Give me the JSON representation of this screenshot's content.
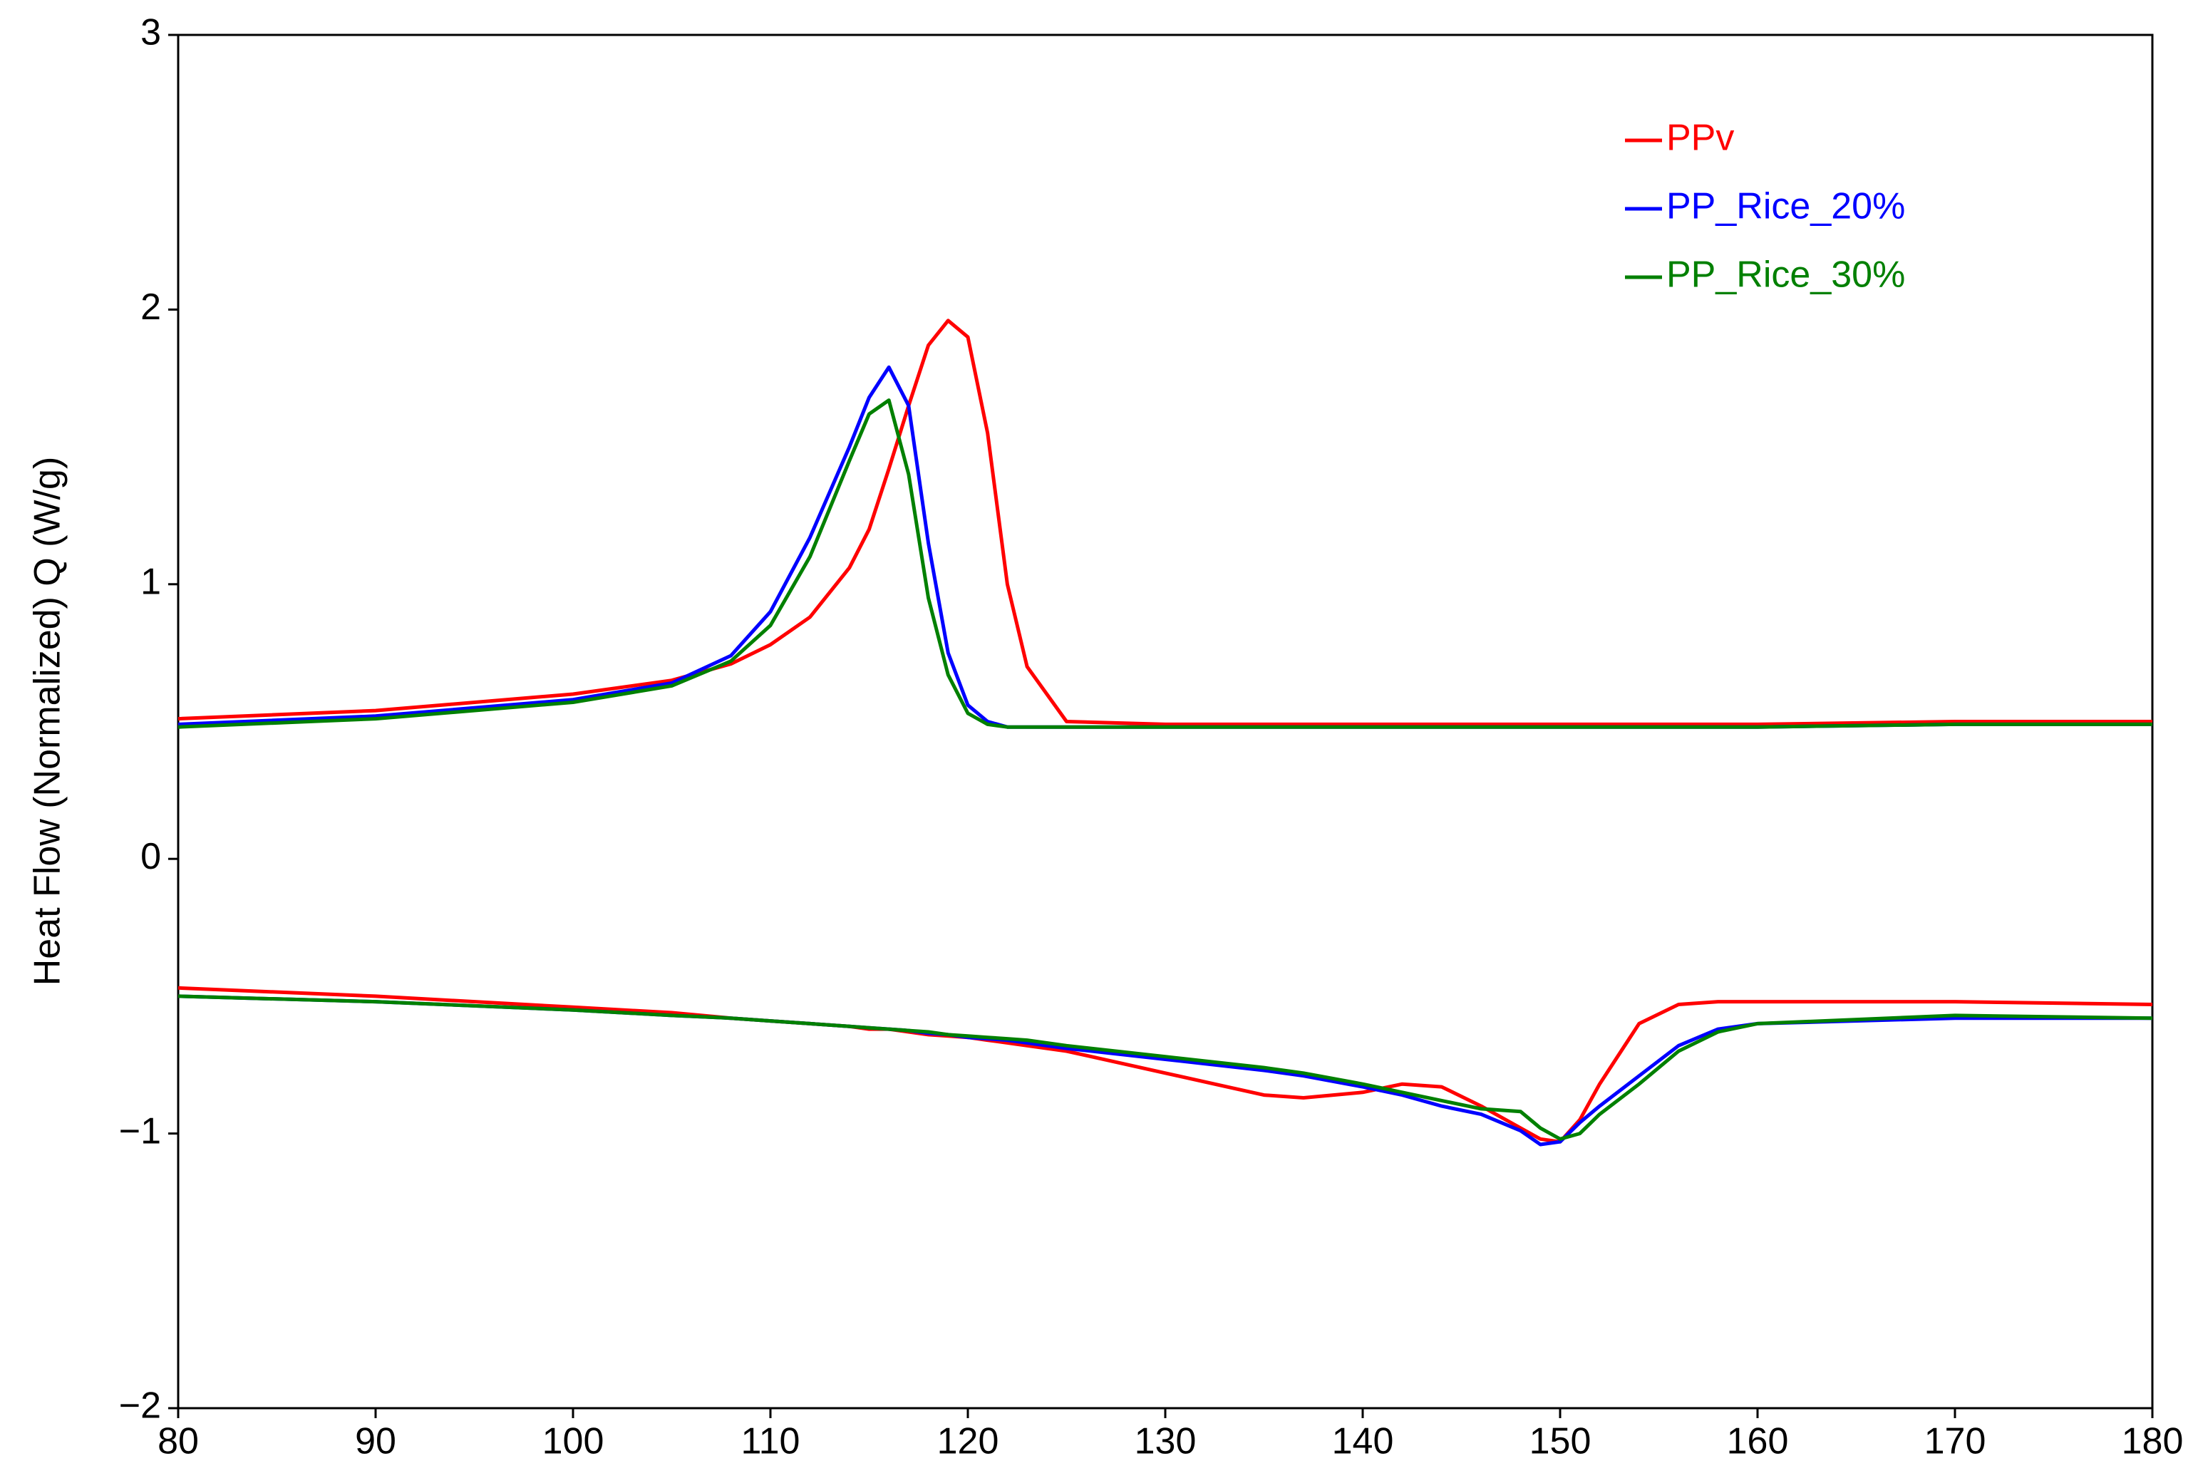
{
  "chart_data": {
    "type": "line",
    "y_label": "Heat Flow (Normalized) Q (W/g)",
    "x": [
      80,
      90,
      100,
      105,
      108,
      110,
      112,
      114,
      115,
      116,
      117,
      118,
      119,
      120,
      121,
      122,
      123,
      125,
      130,
      135,
      137,
      140,
      142,
      144,
      146,
      148,
      149,
      150,
      151,
      152,
      154,
      156,
      158,
      160,
      170,
      180
    ],
    "series": [
      {
        "name": "PPv",
        "color": "#ff0000",
        "values": [
          0.51,
          0.54,
          0.6,
          0.65,
          0.71,
          0.78,
          0.88,
          1.06,
          1.2,
          1.42,
          1.65,
          1.87,
          1.96,
          1.9,
          1.55,
          1.0,
          0.7,
          0.5,
          0.49,
          0.49,
          0.49,
          0.49,
          0.49,
          0.49,
          0.49,
          0.49,
          0.49,
          0.49,
          0.49,
          0.49,
          0.49,
          0.49,
          0.49,
          0.49,
          0.5,
          0.5
        ],
        "values_lower": [
          -0.47,
          -0.5,
          -0.54,
          -0.56,
          -0.58,
          -0.59,
          -0.6,
          -0.61,
          -0.62,
          -0.62,
          -0.63,
          -0.64,
          -0.645,
          -0.65,
          -0.66,
          -0.67,
          -0.68,
          -0.7,
          -0.78,
          -0.86,
          -0.87,
          -0.85,
          -0.82,
          -0.83,
          -0.9,
          -0.98,
          -1.02,
          -1.03,
          -0.95,
          -0.82,
          -0.6,
          -0.53,
          -0.52,
          -0.52,
          -0.52,
          -0.53
        ]
      },
      {
        "name": "PP_Rice_20%",
        "color": "#0000ff",
        "values": [
          0.49,
          0.52,
          0.58,
          0.64,
          0.74,
          0.9,
          1.17,
          1.5,
          1.68,
          1.79,
          1.65,
          1.15,
          0.75,
          0.56,
          0.5,
          0.48,
          0.48,
          0.48,
          0.48,
          0.48,
          0.48,
          0.48,
          0.48,
          0.48,
          0.48,
          0.48,
          0.48,
          0.48,
          0.48,
          0.48,
          0.48,
          0.48,
          0.48,
          0.48,
          0.49,
          0.49
        ],
        "values_lower": [
          -0.5,
          -0.52,
          -0.55,
          -0.57,
          -0.58,
          -0.59,
          -0.6,
          -0.61,
          -0.615,
          -0.62,
          -0.625,
          -0.635,
          -0.64,
          -0.65,
          -0.655,
          -0.66,
          -0.67,
          -0.69,
          -0.73,
          -0.77,
          -0.79,
          -0.83,
          -0.86,
          -0.9,
          -0.93,
          -0.99,
          -1.04,
          -1.03,
          -0.96,
          -0.9,
          -0.79,
          -0.68,
          -0.62,
          -0.6,
          -0.58,
          -0.58
        ]
      },
      {
        "name": "PP_Rice_30%",
        "color": "#008000",
        "values": [
          0.48,
          0.51,
          0.57,
          0.63,
          0.72,
          0.85,
          1.1,
          1.45,
          1.62,
          1.67,
          1.4,
          0.95,
          0.67,
          0.53,
          0.49,
          0.48,
          0.48,
          0.48,
          0.48,
          0.48,
          0.48,
          0.48,
          0.48,
          0.48,
          0.48,
          0.48,
          0.48,
          0.48,
          0.48,
          0.48,
          0.48,
          0.48,
          0.48,
          0.48,
          0.49,
          0.49
        ],
        "values_lower": [
          -0.5,
          -0.52,
          -0.55,
          -0.57,
          -0.58,
          -0.59,
          -0.6,
          -0.61,
          -0.615,
          -0.62,
          -0.625,
          -0.63,
          -0.64,
          -0.645,
          -0.65,
          -0.655,
          -0.66,
          -0.68,
          -0.72,
          -0.76,
          -0.78,
          -0.82,
          -0.85,
          -0.88,
          -0.91,
          -0.92,
          -0.98,
          -1.02,
          -1.0,
          -0.93,
          -0.82,
          -0.7,
          -0.63,
          -0.6,
          -0.57,
          -0.58
        ]
      }
    ],
    "xlim": [
      80,
      180
    ],
    "xticks": [
      80,
      90,
      100,
      110,
      120,
      130,
      140,
      150,
      160,
      170,
      180
    ],
    "ylim": [
      -2,
      3
    ],
    "yticks": [
      {
        "value": -2,
        "label": "−2"
      },
      {
        "value": -1,
        "label": "−1"
      },
      0,
      1,
      2,
      3
    ],
    "grid": false,
    "legend": "upper right"
  }
}
